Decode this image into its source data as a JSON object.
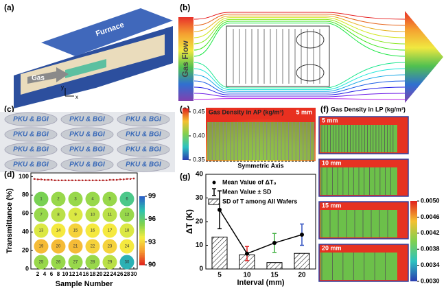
{
  "panel_labels": [
    "(a)",
    "(b)",
    "(c)",
    "(d)",
    "(e)",
    "(f)",
    "(g)"
  ],
  "panel_a": {
    "furnace": "Furnace",
    "gas": "Gas",
    "axis_y": "y",
    "axis_x": "x"
  },
  "panel_b": {
    "label": "Gas Flow"
  },
  "panel_c": {
    "wafer_text": [
      "PKU & BGI",
      "PKU & BGI",
      "PKU & BGI",
      "PKU & BGI",
      "PKU & BGI",
      "PKU & BGI",
      "PKU & BGI",
      "PKU & BGI",
      "PKU & BGI",
      "PKU & BGI",
      "PKU & BGI",
      "PKU & BGI"
    ]
  },
  "panel_e": {
    "title": "Gas Density in AP (kg/m³)",
    "gap": "5 mm",
    "axis": "Symmetric Axis",
    "scale_lim": [
      0.35,
      0.45
    ],
    "scale_ticks": [
      0.35,
      {
        "value": 0.4,
        "label": "0.40"
      },
      0.45
    ]
  },
  "panel_f": {
    "title": "Gas Density in LP (kg/m³)",
    "gaps": [
      "5 mm",
      "10 mm",
      "15 mm",
      "20 mm"
    ],
    "scale_lim": [
      0.003,
      0.005
    ],
    "scale_ticks": [
      {
        "value": 0.005,
        "label": "0.0050"
      },
      0.0046,
      0.0042,
      0.0038,
      0.0034,
      {
        "value": 0.003,
        "label": "0.0030"
      }
    ]
  },
  "chart_data": [
    {
      "type": "line",
      "x_label": "Sample Number",
      "y_label": "Transmittance (%)",
      "x": [
        1,
        2,
        3,
        4,
        5,
        6,
        7,
        8,
        9,
        10,
        11,
        12,
        13,
        14,
        15,
        16,
        17,
        18,
        19,
        20,
        21,
        22,
        23,
        24,
        25,
        26,
        27,
        28,
        29,
        30
      ],
      "series": [
        {
          "color": "#b22222",
          "values": [
            97.5,
            97,
            97,
            96.5,
            96.5,
            96.5,
            96,
            96,
            96,
            96,
            96,
            96,
            96,
            96,
            96,
            96,
            96,
            96,
            96,
            96,
            96,
            96,
            96.5,
            96.5,
            96.5,
            97,
            97,
            97.5,
            97.5,
            98
          ]
        }
      ],
      "xlim": [
        0,
        31
      ],
      "xticks": [
        2,
        4,
        6,
        8,
        10,
        12,
        14,
        16,
        18,
        20,
        22,
        24,
        26,
        28,
        30
      ],
      "ylim": [
        0,
        104
      ],
      "yticks": [
        0,
        20,
        40,
        60,
        80,
        100
      ],
      "map": {
        "labels": [
          1,
          2,
          3,
          4,
          5,
          6,
          7,
          8,
          9,
          10,
          11,
          12,
          13,
          14,
          15,
          16,
          17,
          18,
          19,
          20,
          21,
          22,
          23,
          24,
          25,
          26,
          27,
          28,
          29,
          30
        ],
        "values": [
          95.5,
          95,
          95,
          95,
          95,
          96.5,
          95,
          94.5,
          94,
          94.5,
          94.5,
          95,
          94,
          93.5,
          93,
          93.5,
          93.5,
          94,
          92.5,
          92.5,
          92.5,
          93,
          93,
          93.5,
          95,
          95,
          95,
          95,
          94.5,
          97.5
        ],
        "clim": [
          90,
          99
        ],
        "ticks": [
          90,
          93,
          96,
          99
        ],
        "colors": [
          "#e0201c",
          "#f59a30",
          "#f5ee40",
          "#7ed24e",
          "#2cc2b0",
          "#2a5cc8"
        ]
      }
    },
    {
      "type": "bar_line",
      "x_label": "Interval (mm)",
      "y_label": "ΔT (K)",
      "categories": [
        "5",
        "10",
        "15",
        "20"
      ],
      "ylim": [
        0,
        40
      ],
      "yticks": [
        0,
        10,
        20,
        30,
        40
      ],
      "series": [
        {
          "name": "Mean Value of ΔT₀",
          "color": "#000000",
          "values": [
            25,
            6.5,
            11,
            14.5
          ]
        },
        {
          "name": "Mean Value ± SD",
          "colors": [
            "#000000",
            "#e02020",
            "#40b040",
            "#3050c0"
          ],
          "errors": [
            8,
            3,
            4,
            4.5
          ]
        },
        {
          "name": "SD of T among All Wafers",
          "color": "#000000",
          "values": [
            13.5,
            6,
            2.7,
            6.6
          ]
        }
      ]
    }
  ]
}
